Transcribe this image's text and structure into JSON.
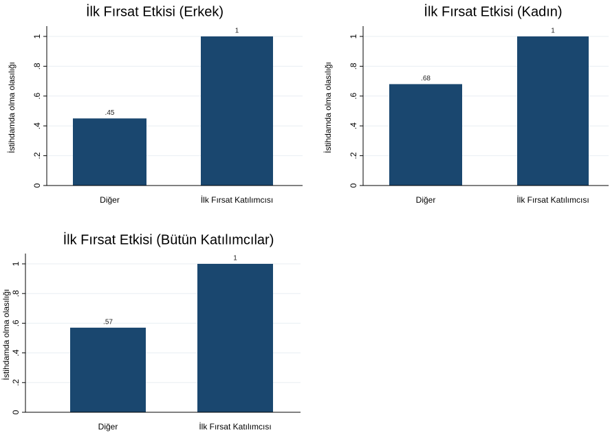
{
  "chart_data": [
    {
      "type": "bar",
      "title": "İlk Fırsat Etkisi (Erkek)",
      "ylabel": "İstihdamda olma olasılığı",
      "categories": [
        "Diğer",
        "İlk Fırsat Katılımcısı"
      ],
      "values": [
        0.45,
        1
      ],
      "value_labels": [
        ".45",
        "1"
      ],
      "color": "#1a476f",
      "ylim": [
        0,
        1
      ],
      "yticks": [
        0,
        {
          "value": 0.2,
          "label": ".2"
        },
        {
          "value": 0.4,
          "label": ".4"
        },
        {
          "value": 0.6,
          "label": ".6"
        },
        {
          "value": 0.8,
          "label": ".8"
        },
        1
      ],
      "grid": true
    },
    {
      "type": "bar",
      "title": "İlk Fırsat Etkisi (Kadın)",
      "ylabel": "İstihdamda olma olasılığı",
      "categories": [
        "Diğer",
        "İlk Fırsat Katılımcısı"
      ],
      "values": [
        0.68,
        1
      ],
      "value_labels": [
        ".68",
        "1"
      ],
      "color": "#1a476f",
      "ylim": [
        0,
        1
      ],
      "yticks": [
        0,
        {
          "value": 0.2,
          "label": ".2"
        },
        {
          "value": 0.4,
          "label": ".4"
        },
        {
          "value": 0.6,
          "label": ".6"
        },
        {
          "value": 0.8,
          "label": ".8"
        },
        1
      ],
      "grid": true
    },
    {
      "type": "bar",
      "title": "İlk Fırsat Etkisi (Bütün Katılımcılar)",
      "ylabel": "İstihdamda olma olasılığı",
      "categories": [
        "Diğer",
        "İlk Fırsat Katılımcısı"
      ],
      "values": [
        0.57,
        1
      ],
      "value_labels": [
        ".57",
        "1"
      ],
      "color": "#1a476f",
      "ylim": [
        0,
        1
      ],
      "yticks": [
        0,
        {
          "value": 0.2,
          "label": ".2"
        },
        {
          "value": 0.4,
          "label": ".4"
        },
        {
          "value": 0.6,
          "label": ".6"
        },
        {
          "value": 0.8,
          "label": ".8"
        },
        1
      ],
      "grid": true
    }
  ]
}
